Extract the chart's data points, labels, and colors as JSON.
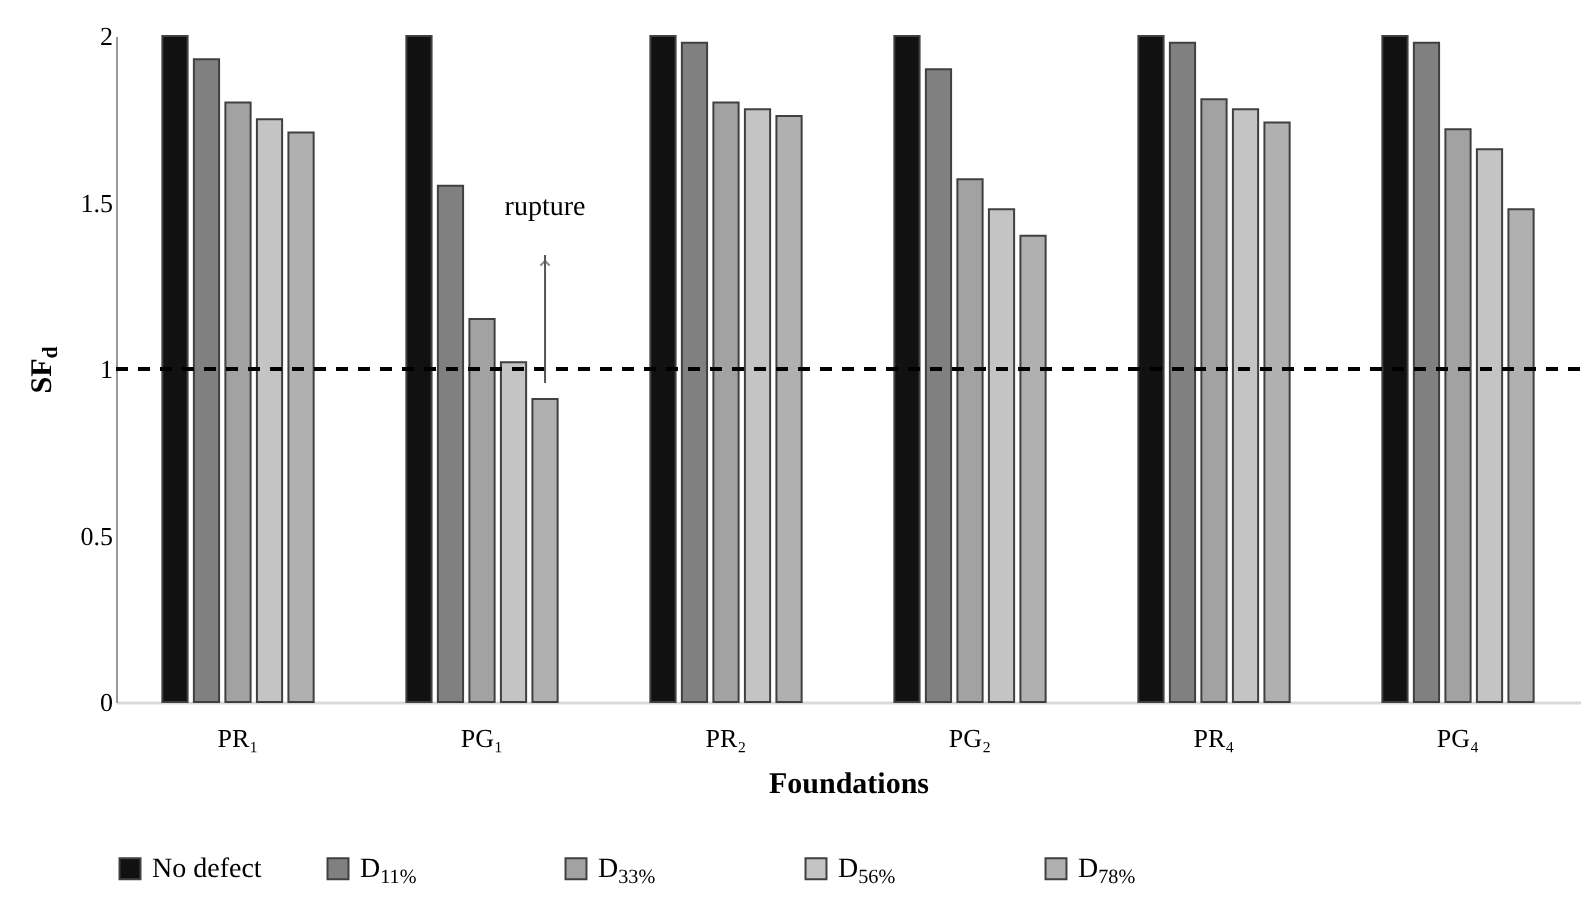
{
  "chart_data": {
    "type": "bar",
    "xlabel": "Foundations",
    "ylabel": "SF$_{d}$",
    "categories": [
      "PR₁",
      "PG₁",
      "PR₂",
      "PG₂",
      "PR₄",
      "PG₄"
    ],
    "series": [
      {
        "name": "No defect",
        "color": "#111111",
        "values": [
          2,
          2,
          2,
          2,
          2,
          2
        ]
      },
      {
        "name": "D$_{11%}$",
        "color": "#808080",
        "values": [
          1.93,
          1.55,
          1.98,
          1.9,
          1.98,
          1.98
        ]
      },
      {
        "name": "D$_{33%}$",
        "color": "#a2a2a2",
        "values": [
          1.8,
          1.15,
          1.8,
          1.57,
          1.81,
          1.72
        ]
      },
      {
        "name": "D$_{56%}$",
        "color": "#c4c4c4",
        "values": [
          1.75,
          1.02,
          1.78,
          1.48,
          1.78,
          1.66
        ]
      },
      {
        "name": "D$_{78%}$",
        "color": "#b0b0b0",
        "values": [
          1.71,
          0.91,
          1.76,
          1.4,
          1.74,
          1.48
        ]
      }
    ],
    "ylim": [
      0,
      2
    ],
    "yticks": [
      0,
      0.5,
      1,
      1.5,
      2
    ],
    "ref_lines": [
      {
        "axis": "y",
        "value": 1,
        "line_style": "dashed",
        "color": "#000000"
      }
    ],
    "annotations": [
      "rupture"
    ],
    "legend": "bottom"
  }
}
